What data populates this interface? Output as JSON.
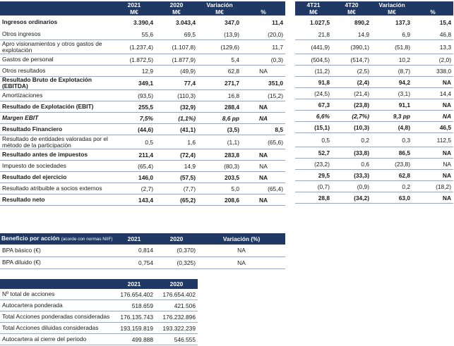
{
  "main": {
    "header": {
      "y2021": "2021",
      "y2020": "2020",
      "variacion": "Variación",
      "unit_meur": "M€",
      "unit_pct": "%",
      "q4t21": "4T21",
      "q4t20": "4T20"
    },
    "rows": [
      {
        "label": "Ingresos ordinarios",
        "style": "b",
        "rule": false,
        "h": "r2",
        "a": [
          "3.390,4",
          "3.043,4",
          "347,0",
          "11,4"
        ],
        "q": [
          "1.027,5",
          "890,2",
          "137,3",
          "15,4"
        ]
      },
      {
        "label": "Otros ingresos",
        "style": "",
        "rule": true,
        "h": "r",
        "a": [
          "55,6",
          "69,5",
          "(13,9)",
          "(20,0)"
        ],
        "q": [
          "21,8",
          "14,9",
          "6,9",
          "46,8"
        ]
      },
      {
        "label": "Apro visionamientos y otros gastos de explotación",
        "style": "",
        "rule": true,
        "h": "r2",
        "a": [
          "(1.237,4)",
          "(1.107,8)",
          "(129,6)",
          "11,7"
        ],
        "q": [
          "(441,9)",
          "(390,1)",
          "(51,8)",
          "13,3"
        ]
      },
      {
        "label": "Gastos de personal",
        "style": "",
        "rule": true,
        "h": "r",
        "a": [
          "(1.872,5)",
          "(1.877,9)",
          "5,4",
          "(0,3)"
        ],
        "q": [
          "(504,5)",
          "(514,7)",
          "10,2",
          "(2,0)"
        ]
      },
      {
        "label": "Otros resultados",
        "style": "",
        "rule": true,
        "h": "r",
        "a": [
          "12,9",
          "(49,9)",
          "62,8",
          "NA"
        ],
        "q": [
          "(11,2)",
          "(2,5)",
          "(8,7)",
          "338,0"
        ]
      },
      {
        "label": "Resultado Bruto de Explotación (EBITDA)",
        "style": "b",
        "rule": true,
        "h": "r",
        "a": [
          "349,1",
          "77,4",
          "271,7",
          "351,0"
        ],
        "q": [
          "91,8",
          "(2,4)",
          "94,2",
          "NA"
        ]
      },
      {
        "label": "Amortizaciones",
        "style": "",
        "rule": true,
        "h": "r",
        "a": [
          "(93,5)",
          "(110,3)",
          "16,8",
          "(15,2)"
        ],
        "q": [
          "(24,5)",
          "(21,4)",
          "(3,1)",
          "14,4"
        ]
      },
      {
        "label": "Resultado de Explotación (EBIT)",
        "style": "b",
        "rule": true,
        "h": "r",
        "a": [
          "255,5",
          "(32,9)",
          "288,4",
          "NA"
        ],
        "q": [
          "67,3",
          "(23,8)",
          "91,1",
          "NA"
        ]
      },
      {
        "label": "Margen EBIT",
        "style": "i",
        "rule": true,
        "h": "r",
        "a": [
          "7,5%",
          "(1,1%)",
          "8,6 pp",
          "NA"
        ],
        "q": [
          "6,6%",
          "(2,7%)",
          "9,3 pp",
          "NA"
        ]
      },
      {
        "label": "Resultado Financiero",
        "style": "b",
        "rule": true,
        "h": "r",
        "a": [
          "(44,6)",
          "(41,1)",
          "(3,5)",
          "8,5"
        ],
        "q": [
          "(15,1)",
          "(10,3)",
          "(4,8)",
          "46,5"
        ]
      },
      {
        "label": "Resultado de entidades valoradas por el método de la participación",
        "style": "",
        "rule": true,
        "h": "r2",
        "a": [
          "0,5",
          "1,6",
          "(1,1)",
          "(65,6)"
        ],
        "q": [
          "0,5",
          "0,2",
          "0,3",
          "112,5"
        ]
      },
      {
        "label": "Resultado antes de impuestos",
        "style": "b",
        "rule": true,
        "h": "r",
        "a": [
          "211,4",
          "(72,4)",
          "283,8",
          "NA"
        ],
        "q": [
          "52,7",
          "(33,8)",
          "86,5",
          "NA"
        ]
      },
      {
        "label": "Impuesto de sociedades",
        "style": "",
        "rule": true,
        "h": "r",
        "a": [
          "(65,4)",
          "14,9",
          "(80,3)",
          "NA"
        ],
        "q": [
          "(23,2)",
          "0,6",
          "(23,8)",
          "NA"
        ]
      },
      {
        "label": "Resultado del ejercicio",
        "style": "b",
        "rule": true,
        "h": "r",
        "a": [
          "146,0",
          "(57,5)",
          "203,5",
          "NA"
        ],
        "q": [
          "29,5",
          "(33,3)",
          "62,8",
          "NA"
        ]
      },
      {
        "label": "Resultado atribuible a socios externos",
        "style": "",
        "rule": true,
        "h": "r",
        "a": [
          "(2,7)",
          "(7,7)",
          "5,0",
          "(65,4)"
        ],
        "q": [
          "(0,7)",
          "(0,9)",
          "0,2",
          "(18,2)"
        ]
      },
      {
        "label": "Resultado neto",
        "style": "b",
        "rule": true,
        "h": "r",
        "a": [
          "143,4",
          "(65,2)",
          "208,6",
          "NA"
        ],
        "q": [
          "28,8",
          "(34,2)",
          "63,0",
          "NA"
        ]
      }
    ]
  },
  "eps": {
    "title": "Beneficio por acción",
    "note": "(acorde con normas NIIF)",
    "col2021": "2021",
    "col2020": "2020",
    "colvar": "Variación (%)",
    "rows": [
      {
        "label": "BPA básico (€)",
        "v2021": "0,814",
        "v2020": "(0,370)",
        "var": "NA"
      },
      {
        "label": "BPA diluido (€)",
        "v2021": "0,754",
        "v2020": "(0,325)",
        "var": "NA"
      }
    ]
  },
  "shares": {
    "col2021": "2021",
    "col2020": "2020",
    "rows": [
      {
        "label": "Nº total de acciones",
        "v2021": "176.654.402",
        "v2020": "176.654.402"
      },
      {
        "label": "Autocartera ponderada",
        "v2021": "518.659",
        "v2020": "421.506"
      },
      {
        "label": "Total Acciones ponderadas consideradas",
        "v2021": "176.135.743",
        "v2020": "176.232.896"
      },
      {
        "label": "Total Acciones diluidas consideradas",
        "v2021": "193.159.819",
        "v2020": "193.322.239"
      },
      {
        "label": "Autocartera al cierre del periodo",
        "v2021": "499.888",
        "v2020": "546.555"
      }
    ]
  }
}
